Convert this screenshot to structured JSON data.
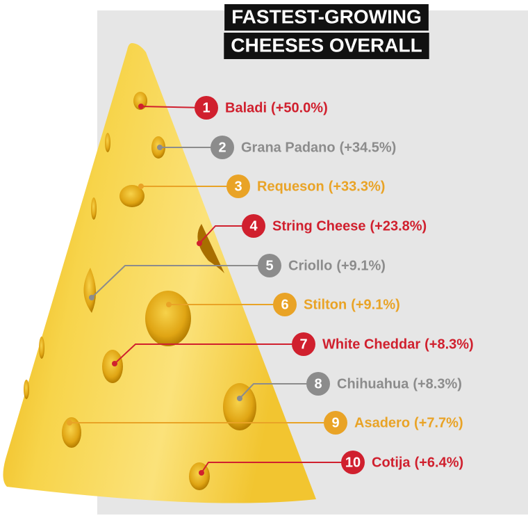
{
  "chart_data": {
    "type": "ranked-list",
    "title": [
      "FASTEST-GROWING",
      "CHEESES OVERALL"
    ],
    "ranks": [
      1,
      2,
      3,
      4,
      5,
      6,
      7,
      8,
      9,
      10
    ],
    "categories": [
      "Baladi",
      "Grana Padano",
      "Requeson",
      "String Cheese",
      "Criollo",
      "Stilton",
      "White Cheddar",
      "Chihuahua",
      "Asadero",
      "Cotija"
    ],
    "values": [
      50.0,
      34.5,
      33.3,
      23.8,
      9.1,
      9.1,
      8.3,
      8.3,
      7.7,
      6.4
    ],
    "value_labels": [
      "(+50.0%)",
      "(+34.5%)",
      "(+33.3%)",
      "(+23.8%)",
      "(+9.1%)",
      "(+9.1%)",
      "(+8.3%)",
      "(+8.3%)",
      "(+7.7%)",
      "(+6.4%)"
    ],
    "colors": [
      "#d0202e",
      "#8c8c8c",
      "#e9a326",
      "#d0202e",
      "#8c8c8c",
      "#e9a326",
      "#d0202e",
      "#8c8c8c",
      "#e9a326",
      "#d0202e"
    ]
  }
}
